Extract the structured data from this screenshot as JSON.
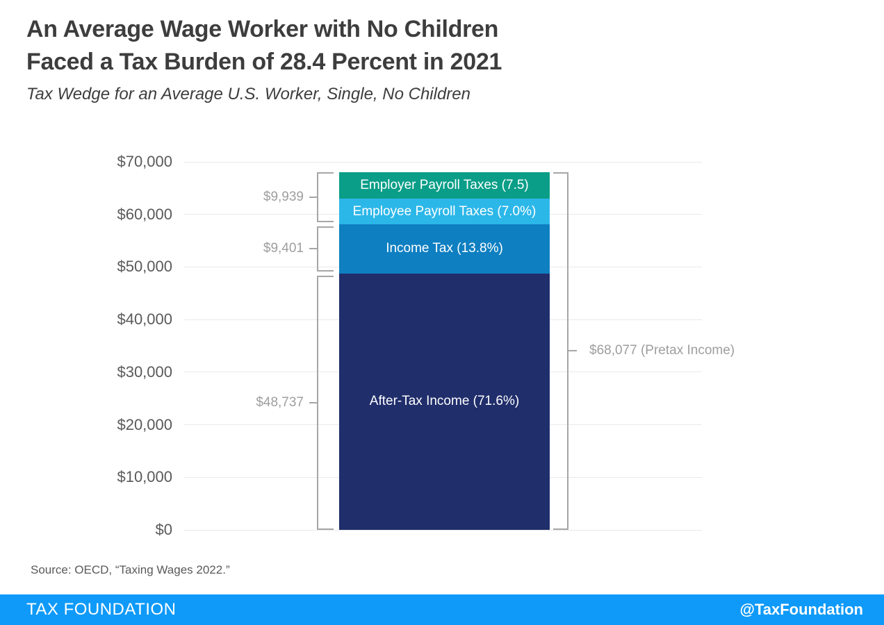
{
  "header": {
    "title_line1": "An Average Wage Worker with No Children",
    "title_line2": "Faced a Tax Burden of 28.4 Percent in 2021",
    "subtitle": "Tax Wedge for an Average U.S. Worker, Single, No Children"
  },
  "chart_data": {
    "type": "bar",
    "title": "Tax Wedge for an Average U.S. Worker, Single, No Children",
    "xlabel": "",
    "ylabel": "",
    "ylim": [
      0,
      70000
    ],
    "grid": true,
    "legend": "none",
    "y_ticks": [
      "$0",
      "$10,000",
      "$20,000",
      "$30,000",
      "$40,000",
      "$50,000",
      "$60,000",
      "$70,000"
    ],
    "bar_total": 68077,
    "segments": [
      {
        "name": "after-tax-income",
        "label": "After-Tax Income (71.6%)",
        "percent": 71.6,
        "value": 48737,
        "color": "#202e6b"
      },
      {
        "name": "income-tax",
        "label": "Income Tax (13.8%)",
        "percent": 13.8,
        "value": 9401,
        "color": "#0e7fc1"
      },
      {
        "name": "employee-payroll-taxes",
        "label": "Employee Payroll Taxes (7.0%)",
        "percent": 7.0,
        "value": 4798,
        "color": "#2cb7e9"
      },
      {
        "name": "employer-payroll-taxes",
        "label": "Employer Payroll Taxes (7.5)",
        "percent": 7.5,
        "value": 5141,
        "color": "#0a9e88"
      }
    ],
    "annotations": [
      {
        "label": "$9,939",
        "covers": "payroll-taxes-total",
        "from": 58138,
        "to": 68077,
        "side": "left"
      },
      {
        "label": "$9,401",
        "covers": "income-tax",
        "from": 48737,
        "to": 58138,
        "side": "left"
      },
      {
        "label": "$48,737",
        "covers": "after-tax-income",
        "from": 0,
        "to": 48737,
        "side": "left"
      },
      {
        "label": "$68,077 (Pretax Income)",
        "covers": "pretax-income",
        "from": 0,
        "to": 68077,
        "side": "right"
      }
    ]
  },
  "source_note": "Source: OECD, “Taxing Wages 2022.”",
  "footer": {
    "brand": "TAX FOUNDATION",
    "handle": "@TaxFoundation",
    "bar_color": "#0f9af9"
  }
}
